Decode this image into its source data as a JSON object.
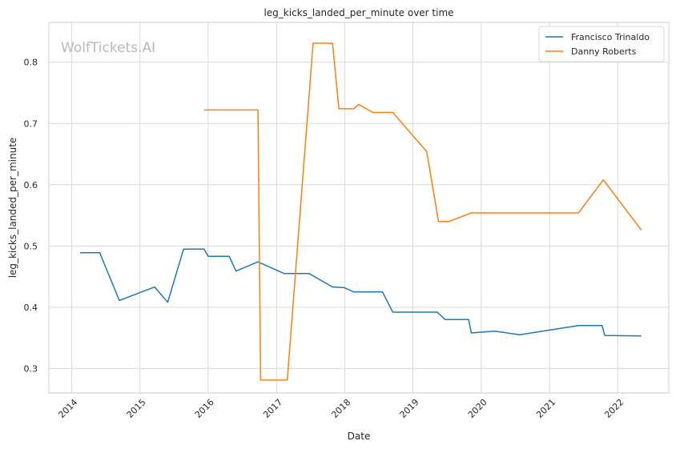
{
  "watermark": "WolfTickets.AI",
  "chart_data": {
    "type": "line",
    "title": "leg_kicks_landed_per_minute over time",
    "xlabel": "Date",
    "ylabel": "leg_kicks_landed_per_minute",
    "x_type": "date",
    "xlim": [
      "2013-09-01",
      "2022-10-01"
    ],
    "ylim": [
      0.26,
      0.865
    ],
    "x_ticks": [
      "2014-01-01",
      "2015-01-01",
      "2016-01-01",
      "2017-01-01",
      "2018-01-01",
      "2019-01-01",
      "2020-01-01",
      "2021-01-01",
      "2022-01-01"
    ],
    "x_tick_labels": [
      "2014",
      "2015",
      "2016",
      "2017",
      "2018",
      "2019",
      "2020",
      "2021",
      "2022"
    ],
    "y_ticks": [
      0.3,
      0.4,
      0.5,
      0.6,
      0.7,
      0.8
    ],
    "y_tick_labels": [
      "0.3",
      "0.4",
      "0.5",
      "0.6",
      "0.7",
      "0.8"
    ],
    "grid": true,
    "legend_position": "top-right",
    "series": [
      {
        "name": "Francisco Trinaldo",
        "color": "#1f77b4",
        "points": [
          [
            "2014-02-15",
            0.489
          ],
          [
            "2014-05-31",
            0.489
          ],
          [
            "2014-09-13",
            0.411
          ],
          [
            "2015-03-21",
            0.433
          ],
          [
            "2015-05-30",
            0.408
          ],
          [
            "2015-08-23",
            0.495
          ],
          [
            "2015-12-10",
            0.495
          ],
          [
            "2016-01-02",
            0.483
          ],
          [
            "2016-04-23",
            0.483
          ],
          [
            "2016-05-29",
            0.459
          ],
          [
            "2016-09-24",
            0.474
          ],
          [
            "2017-02-11",
            0.455
          ],
          [
            "2017-06-25",
            0.455
          ],
          [
            "2017-10-28",
            0.433
          ],
          [
            "2017-12-30",
            0.432
          ],
          [
            "2018-02-18",
            0.425
          ],
          [
            "2018-07-22",
            0.425
          ],
          [
            "2018-09-15",
            0.392
          ],
          [
            "2019-05-11",
            0.392
          ],
          [
            "2019-06-22",
            0.38
          ],
          [
            "2019-10-26",
            0.38
          ],
          [
            "2019-11-09",
            0.358
          ],
          [
            "2020-03-14",
            0.361
          ],
          [
            "2020-07-25",
            0.355
          ],
          [
            "2021-06-05",
            0.37
          ],
          [
            "2021-10-09",
            0.37
          ],
          [
            "2021-10-23",
            0.354
          ],
          [
            "2022-05-07",
            0.353
          ]
        ]
      },
      {
        "name": "Danny Roberts",
        "color": "#ff7f0e",
        "points": [
          [
            "2015-12-10",
            0.722
          ],
          [
            "2016-09-24",
            0.722
          ],
          [
            "2016-10-08",
            0.281
          ],
          [
            "2017-02-28",
            0.281
          ],
          [
            "2017-07-16",
            0.831
          ],
          [
            "2017-10-28",
            0.831
          ],
          [
            "2017-12-01",
            0.724
          ],
          [
            "2018-02-18",
            0.724
          ],
          [
            "2018-03-17",
            0.731
          ],
          [
            "2018-06-01",
            0.718
          ],
          [
            "2018-09-15",
            0.718
          ],
          [
            "2019-03-16",
            0.654
          ],
          [
            "2019-05-18",
            0.54
          ],
          [
            "2019-07-13",
            0.54
          ],
          [
            "2019-11-09",
            0.554
          ],
          [
            "2021-06-05",
            0.554
          ],
          [
            "2021-10-16",
            0.608
          ],
          [
            "2022-05-07",
            0.526
          ]
        ]
      }
    ]
  }
}
